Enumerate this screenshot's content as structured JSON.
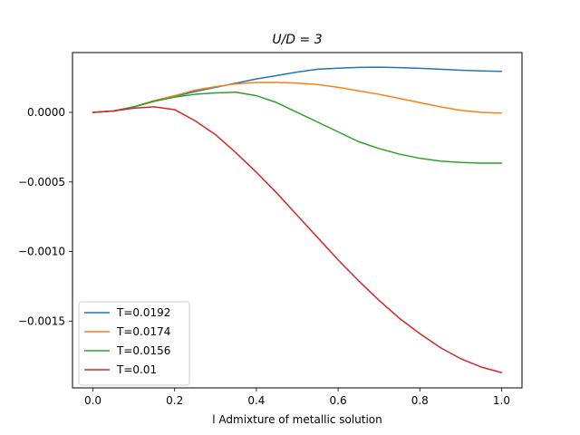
{
  "chart_data": {
    "type": "line",
    "title": "U/D = 3",
    "xlabel": "l Admixture of metallic solution",
    "ylabel": "",
    "xlim": [
      -0.05,
      1.05
    ],
    "ylim": [
      -0.00198,
      0.00043
    ],
    "xticks": [
      0.0,
      0.2,
      0.4,
      0.6,
      0.8,
      1.0
    ],
    "xtick_labels": [
      "0.0",
      "0.2",
      "0.4",
      "0.6",
      "0.8",
      "1.0"
    ],
    "yticks": [
      0.0,
      -0.0005,
      -0.001,
      -0.0015
    ],
    "ytick_labels": [
      "0.0000",
      "−0.0005",
      "−0.0010",
      "−0.0015"
    ],
    "grid": false,
    "legend_position": "lower-left",
    "x": [
      0.0,
      0.05,
      0.1,
      0.15,
      0.2,
      0.25,
      0.3,
      0.35,
      0.4,
      0.45,
      0.5,
      0.55,
      0.6,
      0.65,
      0.7,
      0.75,
      0.8,
      0.85,
      0.9,
      0.95,
      1.0
    ],
    "series": [
      {
        "name": "T=0.0192",
        "color": "#1f77b4",
        "values": [
          0.0,
          1e-05,
          4e-05,
          8e-05,
          0.000115,
          0.00015,
          0.00018,
          0.00021,
          0.00024,
          0.000265,
          0.00029,
          0.00031,
          0.000318,
          0.000323,
          0.000325,
          0.000322,
          0.000317,
          0.00031,
          0.000303,
          0.000298,
          0.000295
        ]
      },
      {
        "name": "T=0.0174",
        "color": "#ff7f0e",
        "values": [
          0.0,
          1e-05,
          4e-05,
          8.5e-05,
          0.00012,
          0.00016,
          0.000185,
          0.000205,
          0.000215,
          0.000215,
          0.00021,
          0.0002,
          0.00018,
          0.000155,
          0.00013,
          0.0001,
          7e-05,
          4e-05,
          1.5e-05,
          0.0,
          -5e-06
        ]
      },
      {
        "name": "T=0.0156",
        "color": "#2ca02c",
        "values": [
          0.0,
          1e-05,
          4e-05,
          8e-05,
          0.00011,
          0.00013,
          0.00014,
          0.000145,
          0.00012,
          7e-05,
          0.0,
          -7e-05,
          -0.00014,
          -0.00021,
          -0.00026,
          -0.0003,
          -0.00033,
          -0.00035,
          -0.00036,
          -0.000365,
          -0.000365
        ]
      },
      {
        "name": "T=0.01",
        "color": "#d62728",
        "values": [
          0.0,
          1e-05,
          3e-05,
          4e-05,
          2e-05,
          -6e-05,
          -0.00016,
          -0.00029,
          -0.00043,
          -0.00058,
          -0.00074,
          -0.0009,
          -0.00106,
          -0.00121,
          -0.00135,
          -0.00148,
          -0.00159,
          -0.00169,
          -0.00177,
          -0.00183,
          -0.00187
        ]
      }
    ]
  }
}
